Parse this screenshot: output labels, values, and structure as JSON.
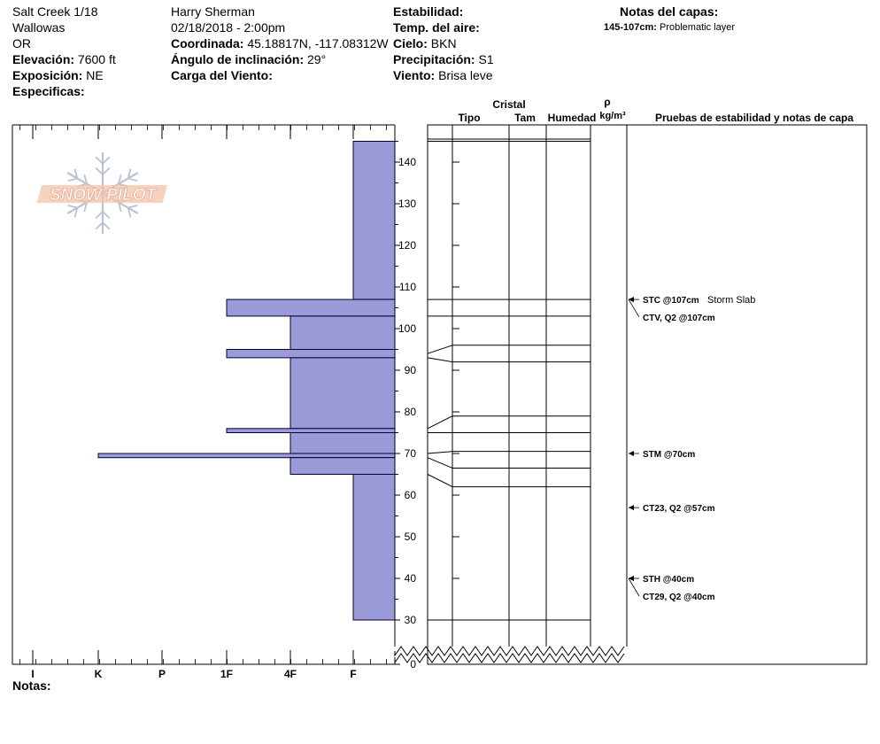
{
  "header": {
    "col1": {
      "site": "Salt Creek 1/18",
      "range": "Wallowas",
      "state": "OR",
      "elevation_label": "Elevación:",
      "elevation_value": "7600 ft",
      "aspect_label": "Exposición:",
      "aspect_value": "NE",
      "specifics_label": "Especificas:"
    },
    "col2": {
      "observer": "Harry Sherman",
      "datetime": "02/18/2018 - 2:00pm",
      "coord_label": "Coordinada:",
      "coord_value": "45.18817N, -117.08312W",
      "slope_label": "Ángulo de inclinación:",
      "slope_value": "29°",
      "wind_load_label": "Carga del Viento:"
    },
    "col3": {
      "stability_label": "Estabilidad:",
      "air_temp_label": "Temp. del aire:",
      "sky_label": "Cielo:",
      "sky_value": "BKN",
      "precip_label": "Precipitación:",
      "precip_value": "S1",
      "wind_label": "Viento:",
      "wind_value": "Brisa leve"
    },
    "col4": {
      "title": "Notas del capas:",
      "layer_note_range": "145-107cm:",
      "layer_note_text": "Problematic layer"
    }
  },
  "columns": {
    "crystal": "Cristal",
    "type": "Tipo",
    "size": "Tam",
    "moisture": "Humedad",
    "rho": "ρ",
    "density_unit": "kg/m³",
    "tests": "Pruebas de estabilidad y notas de capa"
  },
  "notes_label": "Notas:",
  "logo_text": "SNOW PILOT",
  "colors": {
    "hardness_fill": "#9b9bd9",
    "hardness_stroke": "#000033",
    "logo": "#f4c3a8",
    "flake": "#b9c4d0"
  },
  "chart_data": {
    "type": "snow_profile_hardness",
    "y_axis": {
      "min": 0,
      "max": 150,
      "ticks": [
        0,
        30,
        40,
        50,
        60,
        70,
        80,
        90,
        100,
        110,
        120,
        130,
        140
      ],
      "unit": "cm",
      "break_between": [
        0,
        30
      ]
    },
    "x_axis": {
      "categories": [
        "I",
        "K",
        "P",
        "1F",
        "4F",
        "F"
      ],
      "order": "right-to-left hardness"
    },
    "hardness_layers": [
      {
        "top": 145,
        "bottom": 107,
        "hardness": "F"
      },
      {
        "top": 107,
        "bottom": 103,
        "hardness": "1F"
      },
      {
        "top": 103,
        "bottom": 95,
        "hardness": "4F"
      },
      {
        "top": 95,
        "bottom": 93,
        "hardness": "1F"
      },
      {
        "top": 93,
        "bottom": 76,
        "hardness": "4F"
      },
      {
        "top": 76,
        "bottom": 75,
        "hardness": "1F"
      },
      {
        "top": 75,
        "bottom": 70,
        "hardness": "4F"
      },
      {
        "top": 70,
        "bottom": 69,
        "hardness": "K"
      },
      {
        "top": 69,
        "bottom": 65,
        "hardness": "4F"
      },
      {
        "top": 65,
        "bottom": 30,
        "hardness": "F"
      }
    ],
    "layer_lines": [
      {
        "left": 145,
        "right": 145
      },
      {
        "left": 107,
        "right": 107
      },
      {
        "left": 103,
        "right": 103
      },
      {
        "left": 94,
        "right": 96
      },
      {
        "left": 93,
        "right": 92
      },
      {
        "left": 76,
        "right": 79
      },
      {
        "left": 75,
        "right": 75
      },
      {
        "left": 70,
        "right": 70.5
      },
      {
        "left": 69,
        "right": 66.5
      },
      {
        "left": 65,
        "right": 62
      },
      {
        "left": 30,
        "right": 30
      }
    ],
    "stability_tests": [
      {
        "depth": 107,
        "label": "STC @107cm",
        "note": "Storm Slab",
        "offset": 0
      },
      {
        "depth": 107,
        "label": "CTV, Q2 @107cm",
        "note": "",
        "offset": 1
      },
      {
        "depth": 70,
        "label": "STM @70cm",
        "note": "",
        "offset": 0
      },
      {
        "depth": 57,
        "label": "CT23, Q2 @57cm",
        "note": "",
        "offset": 0
      },
      {
        "depth": 40,
        "label": "STH @40cm",
        "note": "",
        "offset": 0
      },
      {
        "depth": 40,
        "label": "CT29, Q2 @40cm",
        "note": "",
        "offset": 1
      }
    ]
  }
}
